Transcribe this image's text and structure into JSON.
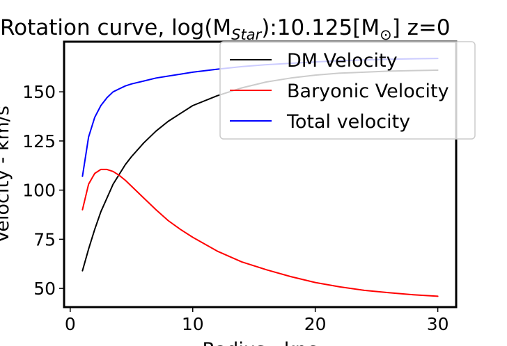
{
  "chart_data": {
    "type": "line",
    "title": "Rotation curve, log(M",
    "title_sub": "Star",
    "title_mid": "):10.125[M",
    "title_sun": "⊙",
    "title_end": "] z=0",
    "xlabel": "Radius - kpc",
    "ylabel": "Velocity - km/s",
    "xlim": [
      -0.5,
      31.5
    ],
    "ylim": [
      40.5,
      175.5
    ],
    "xticks": [
      0,
      10,
      20,
      30
    ],
    "yticks": [
      50,
      75,
      100,
      125,
      150
    ],
    "grid": false,
    "legend_position": "top-right",
    "x": [
      1,
      1.5,
      2,
      2.5,
      3,
      3.5,
      4,
      4.5,
      5,
      6,
      7,
      8,
      9,
      10,
      12,
      14,
      16,
      18,
      20,
      22,
      24,
      26,
      28,
      30
    ],
    "series": [
      {
        "name": "DM Velocity",
        "color": "#000000",
        "values": [
          59,
          70,
          80,
          89,
          96,
          103,
          108,
          113,
          117,
          124,
          130,
          135,
          139,
          143,
          148,
          152,
          155,
          157,
          158.5,
          159.5,
          160,
          160.5,
          160.8,
          161
        ]
      },
      {
        "name": "Baryonic Velocity",
        "color": "#ff0000",
        "values": [
          90,
          103,
          108.5,
          110.5,
          110.5,
          109.5,
          107.5,
          105,
          102,
          96,
          90,
          84.5,
          80,
          76,
          69,
          63.5,
          59.5,
          56,
          53,
          50.8,
          49,
          47.8,
          46.8,
          46
        ]
      },
      {
        "name": "Total velocity",
        "color": "#0000ff",
        "values": [
          107,
          127,
          137,
          143,
          147,
          150,
          151.5,
          153,
          154,
          155.5,
          157,
          158,
          159,
          160,
          161.5,
          162.8,
          163.8,
          164.5,
          165.2,
          165.8,
          166.2,
          166.6,
          166.8,
          167
        ]
      }
    ]
  }
}
